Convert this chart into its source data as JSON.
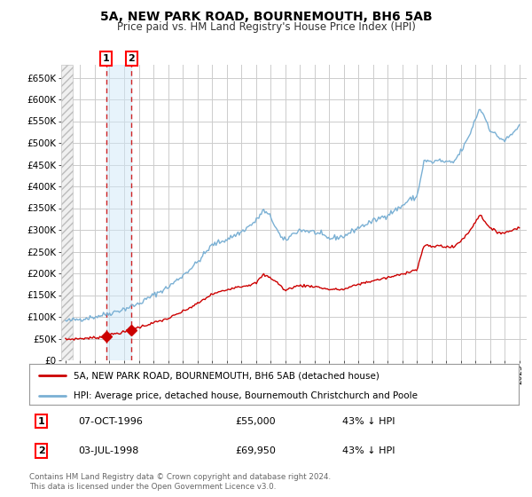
{
  "title": "5A, NEW PARK ROAD, BOURNEMOUTH, BH6 5AB",
  "subtitle": "Price paid vs. HM Land Registry's House Price Index (HPI)",
  "ylim": [
    0,
    680000
  ],
  "yticks": [
    0,
    50000,
    100000,
    150000,
    200000,
    250000,
    300000,
    350000,
    400000,
    450000,
    500000,
    550000,
    600000,
    650000
  ],
  "xlim_start": 1993.7,
  "xlim_end": 2025.5,
  "background_color": "#ffffff",
  "plot_bg_color": "#ffffff",
  "grid_color": "#cccccc",
  "transaction_color": "#cc0000",
  "hpi_color": "#7ab0d4",
  "transaction_label": "5A, NEW PARK ROAD, BOURNEMOUTH, BH6 5AB (detached house)",
  "hpi_label": "HPI: Average price, detached house, Bournemouth Christchurch and Poole",
  "transactions": [
    {
      "date": 1996.77,
      "price": 55000,
      "label": "1"
    },
    {
      "date": 1998.5,
      "price": 69950,
      "label": "2"
    }
  ],
  "sale_annotations": [
    {
      "num": "1",
      "date_str": "07-OCT-1996",
      "price_str": "£55,000",
      "hpi_str": "43% ↓ HPI"
    },
    {
      "num": "2",
      "date_str": "03-JUL-1998",
      "price_str": "£69,950",
      "hpi_str": "43% ↓ HPI"
    }
  ],
  "footer": "Contains HM Land Registry data © Crown copyright and database right 2024.\nThis data is licensed under the Open Government Licence v3.0.",
  "hatch_end": 1994.5
}
